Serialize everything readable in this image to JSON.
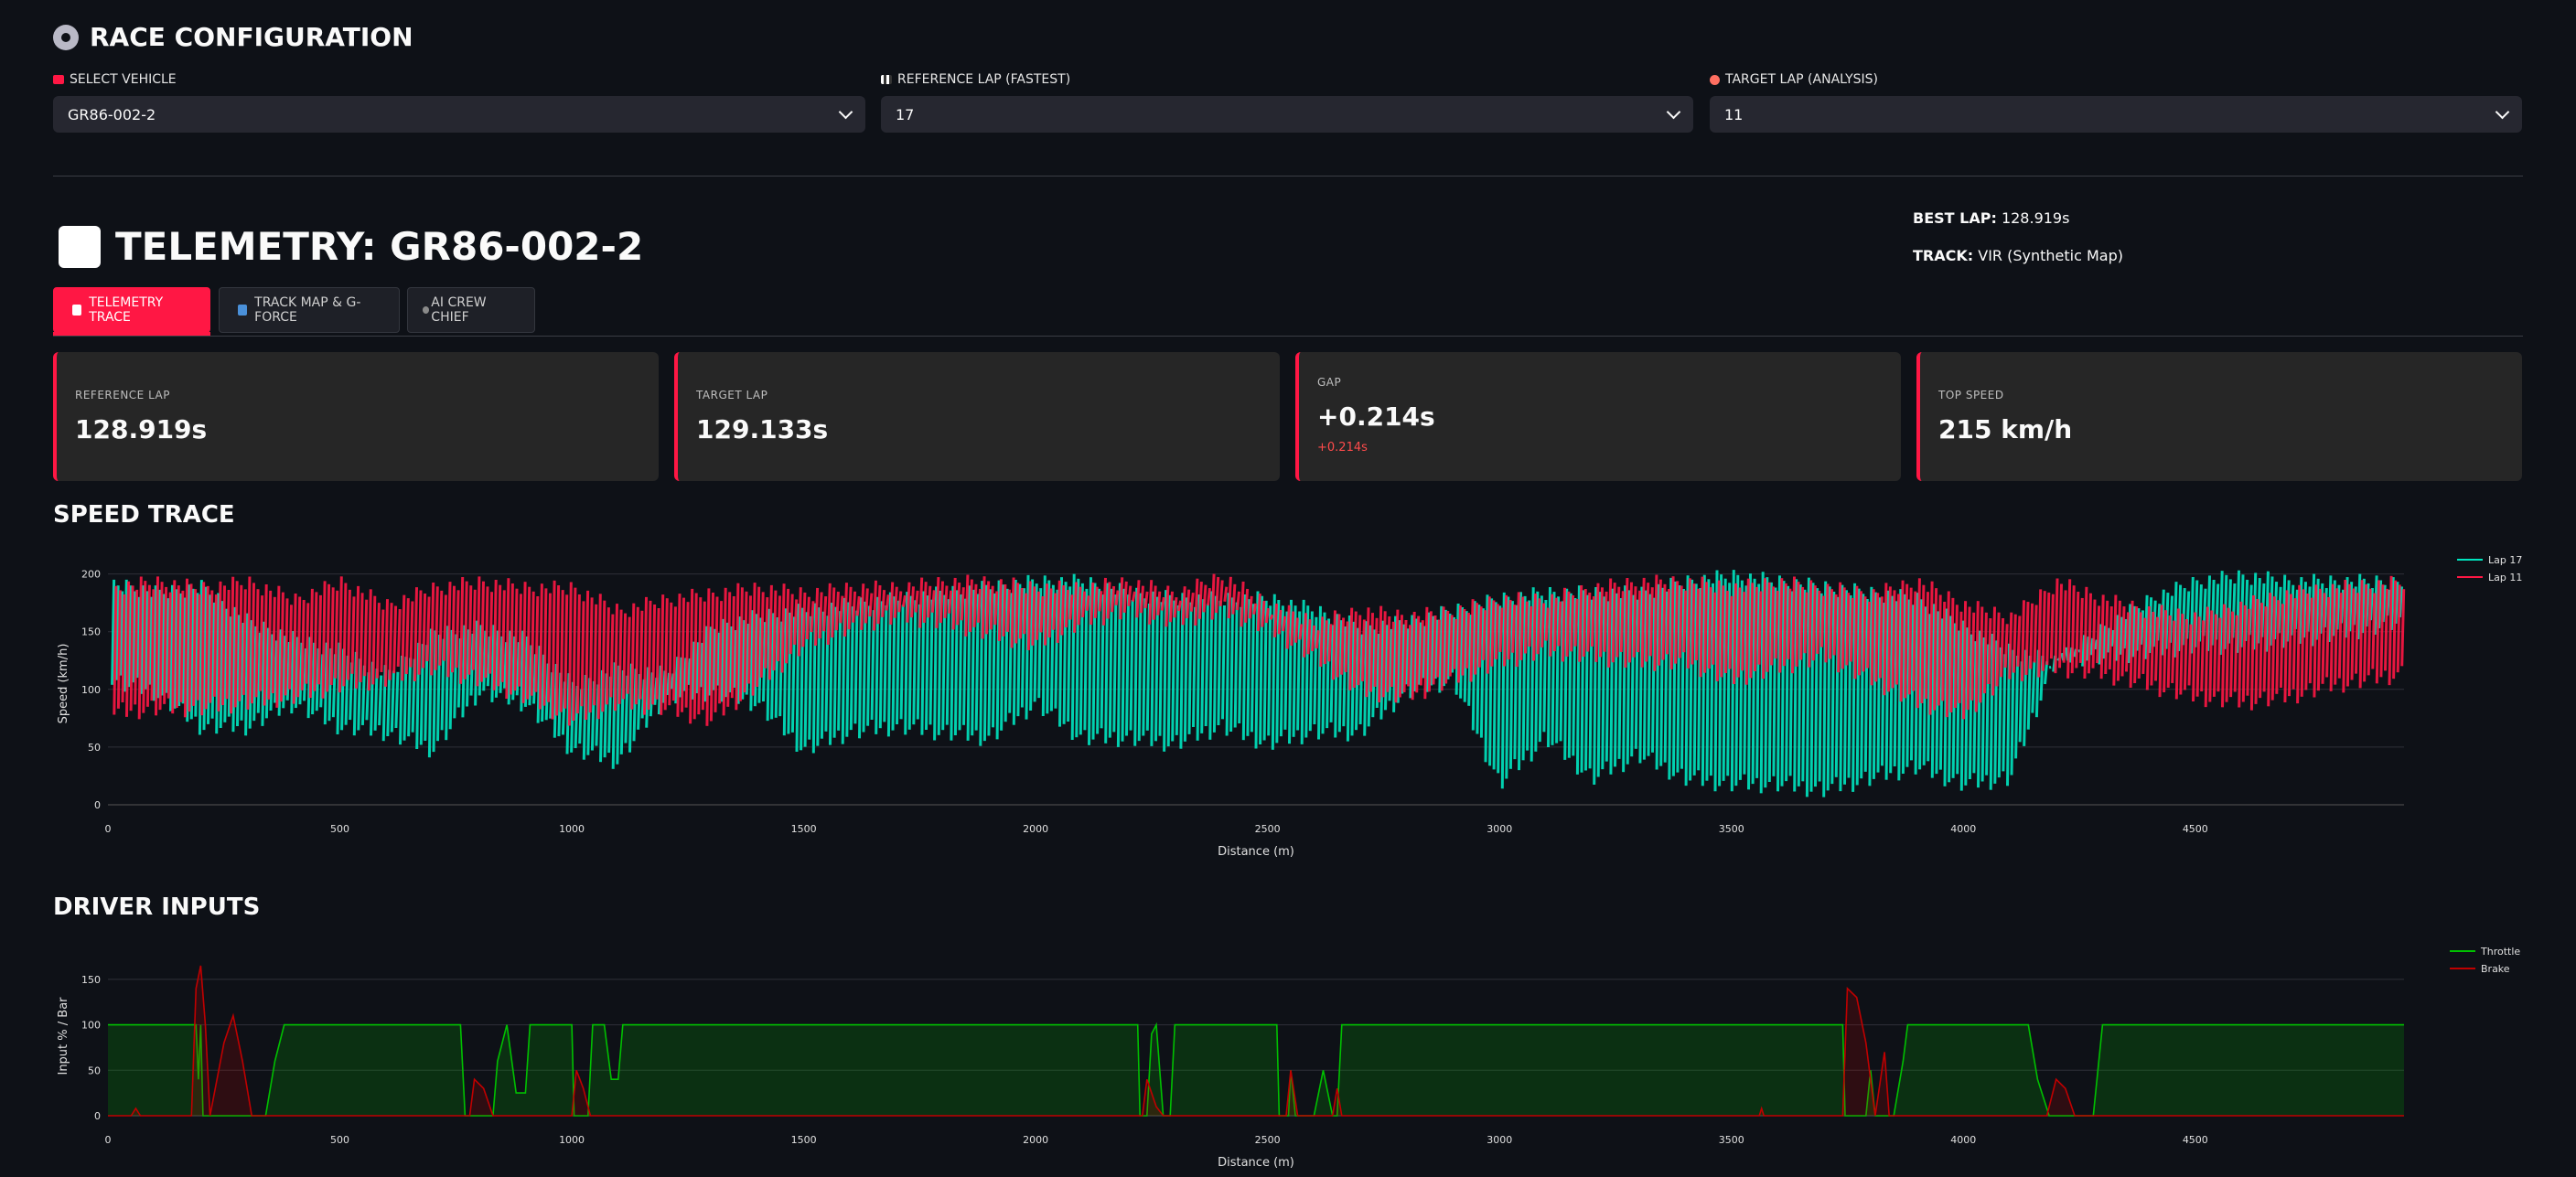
{
  "config": {
    "title": "RACE CONFIGURATION",
    "vehicle": {
      "label": "SELECT VEHICLE",
      "value": "GR86-002-2"
    },
    "reference": {
      "label": "REFERENCE LAP (FASTEST)",
      "value": "17"
    },
    "target": {
      "label": "TARGET LAP (ANALYSIS)",
      "value": "11"
    }
  },
  "telemetry": {
    "title": "TELEMETRY: GR86-002-2",
    "best_lap_label": "BEST LAP:",
    "best_lap_value": "128.919s",
    "track_label": "TRACK:",
    "track_value": "VIR (Synthetic Map)"
  },
  "tabs": [
    {
      "label": "TELEMETRY TRACE",
      "active": true
    },
    {
      "label": "TRACK MAP & G-FORCE",
      "active": false
    },
    {
      "label": "AI CREW CHIEF",
      "active": false
    }
  ],
  "metrics": [
    {
      "label": "REFERENCE LAP",
      "value": "128.919s"
    },
    {
      "label": "TARGET LAP",
      "value": "129.133s"
    },
    {
      "label": "GAP",
      "value": "+0.214s",
      "delta": "+0.214s"
    },
    {
      "label": "TOP SPEED",
      "value": "215 km/h"
    }
  ],
  "colors": {
    "accent": "#ff1744",
    "lap_ref": "#00e5c0",
    "lap_target": "#ff1744",
    "throttle": "#00c000",
    "brake": "#c00000"
  },
  "chart_data": [
    {
      "type": "line",
      "title": "SPEED TRACE",
      "xlabel": "Distance (m)",
      "ylabel": "Speed (km/h)",
      "xlim": [
        0,
        4950
      ],
      "ylim": [
        0,
        210
      ],
      "xticks": [
        0,
        500,
        1000,
        1500,
        2000,
        2500,
        3000,
        3500,
        4000,
        4500
      ],
      "yticks": [
        0,
        50,
        100,
        150,
        200
      ],
      "legend_position": "top-right",
      "series": [
        {
          "name": "Lap 17",
          "color": "#00e5c0",
          "x": [
            0,
            100,
            200,
            300,
            400,
            500,
            600,
            700,
            800,
            900,
            1000,
            1100,
            1200,
            1300,
            1400,
            1500,
            1600,
            1700,
            1800,
            1900,
            2000,
            2100,
            2200,
            2300,
            2400,
            2500,
            2600,
            2700,
            2800,
            2900,
            3000,
            3100,
            3200,
            3300,
            3400,
            3500,
            3600,
            3700,
            3800,
            3900,
            4000,
            4100,
            4200,
            4300,
            4400,
            4500,
            4600,
            4700,
            4800,
            4950
          ],
          "upper": [
            200,
            190,
            195,
            165,
            150,
            140,
            120,
            155,
            160,
            150,
            110,
            125,
            120,
            160,
            170,
            175,
            180,
            185,
            190,
            195,
            200,
            200,
            190,
            185,
            185,
            185,
            175,
            160,
            165,
            175,
            185,
            190,
            190,
            190,
            200,
            205,
            200,
            195,
            190,
            185,
            160,
            140,
            130,
            160,
            185,
            200,
            205,
            200,
            200,
            200
          ],
          "lower": [
            100,
            90,
            60,
            60,
            80,
            60,
            55,
            40,
            90,
            80,
            40,
            30,
            85,
            90,
            80,
            40,
            55,
            60,
            55,
            50,
            80,
            50,
            50,
            45,
            60,
            45,
            55,
            55,
            90,
            100,
            10,
            50,
            15,
            35,
            15,
            10,
            10,
            5,
            15,
            25,
            10,
            15,
            120,
            120,
            125,
            130,
            130,
            135,
            140,
            150
          ]
        },
        {
          "name": "Lap 11",
          "color": "#ff1744",
          "x": [
            0,
            100,
            200,
            300,
            400,
            500,
            600,
            700,
            800,
            900,
            1000,
            1100,
            1200,
            1300,
            1400,
            1500,
            1600,
            1700,
            1800,
            1900,
            2000,
            2100,
            2200,
            2300,
            2400,
            2500,
            2600,
            2700,
            2800,
            2900,
            3000,
            3100,
            3200,
            3300,
            3400,
            3500,
            3600,
            3700,
            3800,
            3900,
            4000,
            4100,
            4200,
            4300,
            4400,
            4500,
            4600,
            4700,
            4800,
            4950
          ],
          "upper": [
            195,
            200,
            195,
            200,
            185,
            200,
            180,
            195,
            200,
            195,
            195,
            175,
            185,
            190,
            195,
            190,
            195,
            195,
            200,
            200,
            195,
            195,
            200,
            190,
            205,
            180,
            165,
            175,
            170,
            175,
            185,
            185,
            195,
            200,
            200,
            195,
            200,
            195,
            190,
            200,
            180,
            170,
            200,
            185,
            175,
            170,
            180,
            190,
            195,
            200
          ],
          "lower": [
            70,
            75,
            75,
            80,
            85,
            95,
            100,
            110,
            100,
            85,
            65,
            80,
            75,
            65,
            95,
            130,
            145,
            155,
            150,
            140,
            130,
            150,
            160,
            150,
            160,
            145,
            120,
            90,
            85,
            100,
            115,
            125,
            120,
            115,
            115,
            100,
            110,
            120,
            100,
            80,
            70,
            105,
            110,
            105,
            95,
            85,
            80,
            85,
            95,
            105
          ]
        }
      ]
    },
    {
      "type": "area",
      "title": "DRIVER INPUTS",
      "xlabel": "Distance (m)",
      "ylabel": "Input % / Bar",
      "xlim": [
        0,
        4950
      ],
      "ylim": [
        0,
        175
      ],
      "xticks": [
        0,
        500,
        1000,
        1500,
        2000,
        2500,
        3000,
        3500,
        4000,
        4500
      ],
      "yticks": [
        0,
        50,
        100,
        150
      ],
      "legend_position": "top-right",
      "series": [
        {
          "name": "Throttle",
          "color": "#00c000",
          "points": [
            [
              0,
              100
            ],
            [
              190,
              100
            ],
            [
              195,
              40
            ],
            [
              200,
              100
            ],
            [
              205,
              0
            ],
            [
              340,
              0
            ],
            [
              360,
              60
            ],
            [
              380,
              100
            ],
            [
              760,
              100
            ],
            [
              770,
              0
            ],
            [
              830,
              0
            ],
            [
              840,
              60
            ],
            [
              860,
              100
            ],
            [
              880,
              25
            ],
            [
              900,
              25
            ],
            [
              910,
              100
            ],
            [
              950,
              100
            ],
            [
              1000,
              100
            ],
            [
              1005,
              0
            ],
            [
              1035,
              0
            ],
            [
              1045,
              100
            ],
            [
              1070,
              100
            ],
            [
              1085,
              40
            ],
            [
              1100,
              40
            ],
            [
              1110,
              100
            ],
            [
              2220,
              100
            ],
            [
              2225,
              0
            ],
            [
              2240,
              0
            ],
            [
              2250,
              90
            ],
            [
              2260,
              100
            ],
            [
              2275,
              0
            ],
            [
              2290,
              0
            ],
            [
              2300,
              100
            ],
            [
              2520,
              100
            ],
            [
              2525,
              0
            ],
            [
              2545,
              0
            ],
            [
              2550,
              50
            ],
            [
              2560,
              0
            ],
            [
              2600,
              0
            ],
            [
              2620,
              50
            ],
            [
              2640,
              0
            ],
            [
              2650,
              0
            ],
            [
              2660,
              100
            ],
            [
              3740,
              100
            ],
            [
              3745,
              0
            ],
            [
              3790,
              0
            ],
            [
              3800,
              50
            ],
            [
              3810,
              0
            ],
            [
              3850,
              0
            ],
            [
              3870,
              60
            ],
            [
              3880,
              100
            ],
            [
              4140,
              100
            ],
            [
              4160,
              40
            ],
            [
              4185,
              0
            ],
            [
              4280,
              0
            ],
            [
              4300,
              100
            ],
            [
              4950,
              100
            ]
          ]
        },
        {
          "name": "Brake",
          "color": "#c00000",
          "points": [
            [
              0,
              0
            ],
            [
              50,
              0
            ],
            [
              60,
              8
            ],
            [
              70,
              0
            ],
            [
              180,
              0
            ],
            [
              190,
              140
            ],
            [
              200,
              165
            ],
            [
              210,
              100
            ],
            [
              220,
              0
            ],
            [
              250,
              80
            ],
            [
              270,
              110
            ],
            [
              290,
              60
            ],
            [
              310,
              0
            ],
            [
              780,
              0
            ],
            [
              790,
              40
            ],
            [
              810,
              30
            ],
            [
              830,
              0
            ],
            [
              1000,
              0
            ],
            [
              1010,
              50
            ],
            [
              1025,
              30
            ],
            [
              1040,
              0
            ],
            [
              2230,
              0
            ],
            [
              2240,
              40
            ],
            [
              2260,
              10
            ],
            [
              2275,
              0
            ],
            [
              2540,
              0
            ],
            [
              2550,
              50
            ],
            [
              2565,
              0
            ],
            [
              2640,
              0
            ],
            [
              2650,
              30
            ],
            [
              2660,
              0
            ],
            [
              3560,
              0
            ],
            [
              3565,
              8
            ],
            [
              3570,
              0
            ],
            [
              3740,
              0
            ],
            [
              3750,
              140
            ],
            [
              3770,
              130
            ],
            [
              3790,
              80
            ],
            [
              3810,
              0
            ],
            [
              3830,
              70
            ],
            [
              3840,
              0
            ],
            [
              4180,
              0
            ],
            [
              4200,
              40
            ],
            [
              4220,
              30
            ],
            [
              4240,
              0
            ],
            [
              4950,
              0
            ]
          ]
        }
      ]
    }
  ]
}
